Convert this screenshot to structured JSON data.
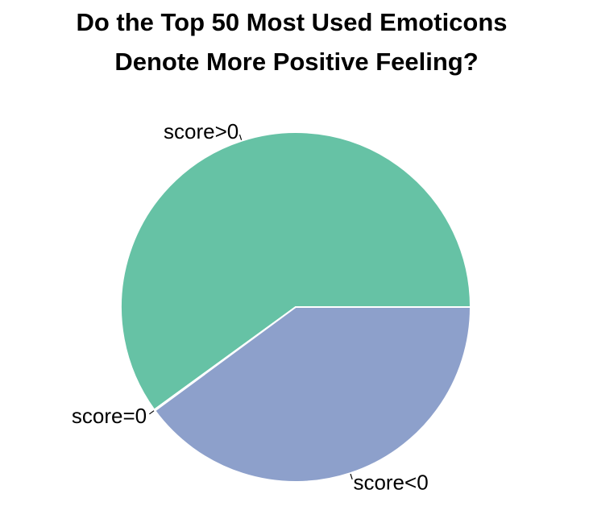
{
  "chart_data": {
    "type": "pie",
    "title": "Do the Top 50 Most Used Emoticons\nDenote More Positive Feeling?",
    "title_lines": [
      "Do the Top 50 Most Used Emoticons",
      "Denote More Positive Feeling?"
    ],
    "slices": [
      {
        "label": "score>0",
        "value": 0.6,
        "color": "#66c2a5"
      },
      {
        "label": "score=0",
        "value": 0.001,
        "color": "#fc8d62"
      },
      {
        "label": "score<0",
        "value": 0.399,
        "color": "#8da0cb"
      }
    ],
    "legend": "none",
    "grid": false
  }
}
